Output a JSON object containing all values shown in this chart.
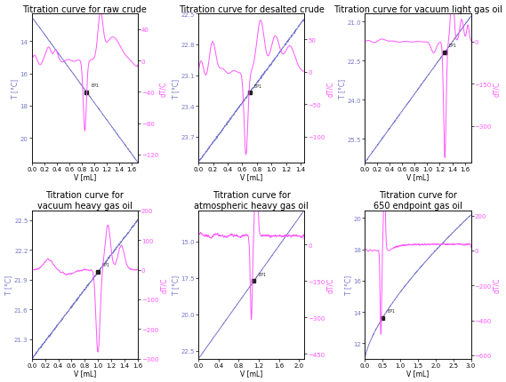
{
  "titles": [
    "Titration curve for raw crude",
    "Titration curve for desalted crude",
    "Titration curve for vacuum light gas oil",
    "Titration curve for\nvacuum heavy gas oil",
    "Titration curve for\natmospheric heavy gas oil",
    "Titration curve for\n650 endpoint gas oil"
  ],
  "xlabels": [
    "V [mL]",
    "V [mL]",
    "V [mL]",
    "V [mL]",
    "V [mL]",
    "V [mL]"
  ],
  "ylabel_left": "T [°C]",
  "ylabel_right": "dT/C",
  "line_color_temp": "#7777cc",
  "line_color_dtc": "#ff55ff",
  "marker_color": "#222222",
  "bg_color": "#ffffff",
  "title_fontsize": 7,
  "axis_fontsize": 5.5,
  "tick_fontsize": 5
}
